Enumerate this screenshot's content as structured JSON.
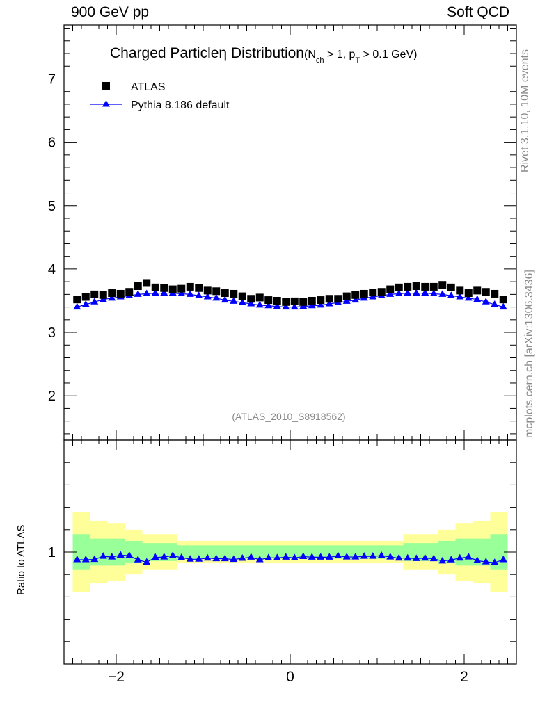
{
  "header": {
    "left": "900 GeV pp",
    "right": "Soft QCD"
  },
  "side_labels": {
    "rivet": "Rivet 3.1.10,  10M events",
    "mcplots": "mcplots.cern.ch [arXiv:1306.3436]"
  },
  "colors": {
    "data": "#000000",
    "mc": "#0000ff",
    "band_inner": "#99ff99",
    "band_outer": "#ffff99"
  },
  "chart_data": [
    {
      "type": "scatter",
      "title": "Charged Particle",
      "title_eta": "η",
      "title_rest": " Distribution",
      "title_sub": "(N",
      "title_sub_ch": "ch",
      "title_sub_mid": " > 1, p",
      "title_sub_t": "T",
      "title_sub_end": " > 0.1 GeV)",
      "analysis_label": "(ATLAS_2010_S8918562)",
      "xlim": [
        -2.6,
        2.6
      ],
      "ylim": [
        1.3,
        7.85
      ],
      "yticks": [
        "2",
        "3",
        "4",
        "5",
        "6",
        "7"
      ],
      "legend_placement": "top-left",
      "legend": [
        "ATLAS",
        "Pythia 8.186 default"
      ],
      "x": [
        -2.45,
        -2.35,
        -2.25,
        -2.15,
        -2.05,
        -1.95,
        -1.85,
        -1.75,
        -1.65,
        -1.55,
        -1.45,
        -1.35,
        -1.25,
        -1.15,
        -1.05,
        -0.95,
        -0.85,
        -0.75,
        -0.65,
        -0.55,
        -0.45,
        -0.35,
        -0.25,
        -0.15,
        -0.05,
        0.05,
        0.15,
        0.25,
        0.35,
        0.45,
        0.55,
        0.65,
        0.75,
        0.85,
        0.95,
        1.05,
        1.15,
        1.25,
        1.35,
        1.45,
        1.55,
        1.65,
        1.75,
        1.85,
        1.95,
        2.05,
        2.15,
        2.25,
        2.35,
        2.45
      ],
      "series": [
        {
          "name": "ATLAS",
          "marker": "square",
          "values": [
            3.52,
            3.56,
            3.6,
            3.59,
            3.62,
            3.61,
            3.64,
            3.73,
            3.78,
            3.71,
            3.7,
            3.68,
            3.69,
            3.72,
            3.7,
            3.66,
            3.65,
            3.62,
            3.61,
            3.57,
            3.53,
            3.55,
            3.51,
            3.5,
            3.48,
            3.49,
            3.48,
            3.5,
            3.51,
            3.53,
            3.53,
            3.57,
            3.59,
            3.61,
            3.63,
            3.64,
            3.68,
            3.71,
            3.72,
            3.73,
            3.72,
            3.72,
            3.75,
            3.71,
            3.66,
            3.62,
            3.66,
            3.64,
            3.61,
            3.52
          ]
        },
        {
          "name": "Pythia 8.186 default",
          "marker": "triangle",
          "values": [
            3.4,
            3.44,
            3.48,
            3.52,
            3.54,
            3.56,
            3.58,
            3.6,
            3.61,
            3.62,
            3.62,
            3.62,
            3.61,
            3.6,
            3.58,
            3.56,
            3.54,
            3.51,
            3.49,
            3.47,
            3.45,
            3.43,
            3.42,
            3.41,
            3.4,
            3.4,
            3.41,
            3.42,
            3.43,
            3.45,
            3.47,
            3.49,
            3.51,
            3.54,
            3.56,
            3.58,
            3.6,
            3.61,
            3.62,
            3.62,
            3.62,
            3.61,
            3.6,
            3.58,
            3.56,
            3.54,
            3.52,
            3.48,
            3.44,
            3.4
          ]
        }
      ]
    },
    {
      "type": "scatter",
      "ylabel": "Ratio to ATLAS",
      "xlim": [
        -2.6,
        2.6
      ],
      "ylim": [
        0.5,
        1.5
      ],
      "xticks": [
        "−2",
        "0",
        "2"
      ],
      "yticks": [
        "1"
      ],
      "band_edges": [
        -2.5,
        -2.3,
        -2.1,
        -1.9,
        -1.7,
        -1.3,
        1.3,
        1.7,
        1.9,
        2.1,
        2.3,
        2.5
      ],
      "band_inner": [
        0.08,
        0.06,
        0.06,
        0.05,
        0.04,
        0.03,
        0.04,
        0.05,
        0.06,
        0.06,
        0.08
      ],
      "band_outer": [
        0.18,
        0.14,
        0.13,
        0.1,
        0.08,
        0.05,
        0.08,
        0.1,
        0.13,
        0.14,
        0.18
      ],
      "series": [
        {
          "name": "Pythia 8.186 default",
          "marker": "triangle",
          "values": [
            0.966,
            0.966,
            0.967,
            0.981,
            0.978,
            0.986,
            0.984,
            0.965,
            0.955,
            0.976,
            0.978,
            0.984,
            0.975,
            0.968,
            0.968,
            0.973,
            0.97,
            0.97,
            0.967,
            0.972,
            0.977,
            0.966,
            0.974,
            0.974,
            0.977,
            0.974,
            0.98,
            0.977,
            0.977,
            0.977,
            0.983,
            0.978,
            0.978,
            0.981,
            0.981,
            0.984,
            0.978,
            0.973,
            0.973,
            0.971,
            0.973,
            0.97,
            0.96,
            0.965,
            0.973,
            0.978,
            0.962,
            0.956,
            0.953,
            0.966
          ]
        }
      ]
    }
  ]
}
